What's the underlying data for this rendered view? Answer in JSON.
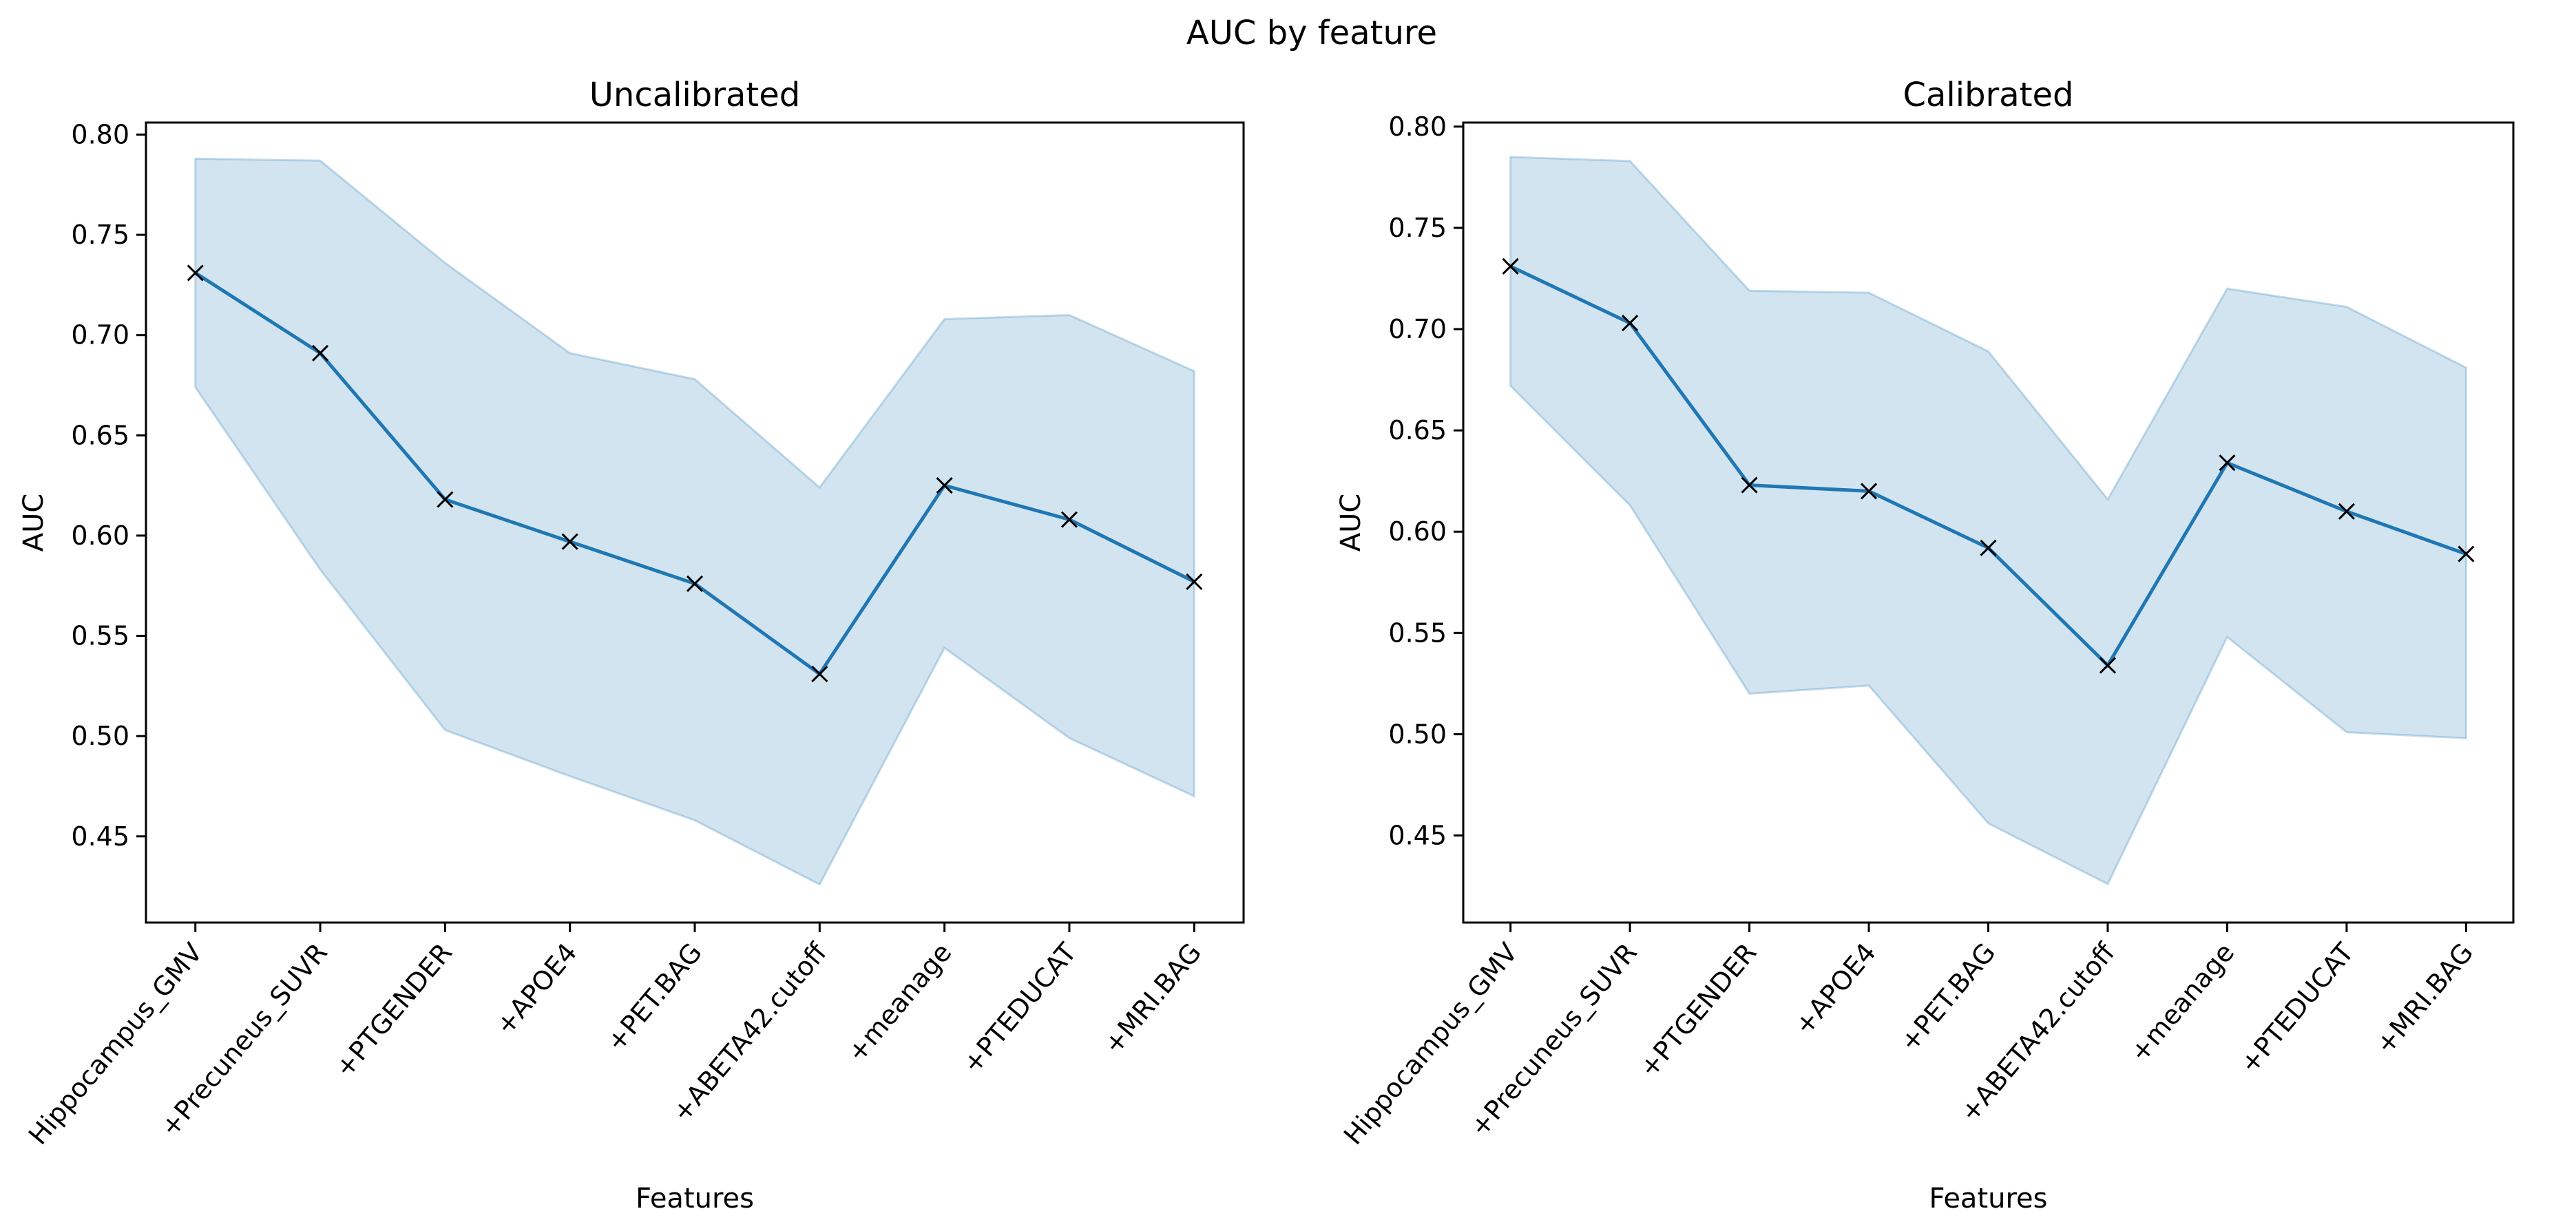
{
  "figure": {
    "suptitle": "AUC by feature"
  },
  "chart_data": [
    {
      "type": "line",
      "title": "Uncalibrated",
      "xlabel": "Features",
      "ylabel": "AUC",
      "categories": [
        "Hippocampus_GMV",
        "+Precuneus_SUVR",
        "+PTGENDER",
        "+APOE4",
        "+PET.BAG",
        "+ABETA42.cutoff",
        "+meanage",
        "+PTEDUCAT",
        "+MRI.BAG"
      ],
      "yticks": [
        "0.45",
        "0.50",
        "0.55",
        "0.60",
        "0.65",
        "0.70",
        "0.75",
        "0.80"
      ],
      "ylim": [
        0.407,
        0.806
      ],
      "values": [
        0.731,
        0.691,
        0.618,
        0.597,
        0.576,
        0.531,
        0.625,
        0.608,
        0.577
      ],
      "lower": [
        0.674,
        0.583,
        0.503,
        0.48,
        0.458,
        0.426,
        0.544,
        0.499,
        0.47
      ],
      "upper": [
        0.788,
        0.787,
        0.736,
        0.691,
        0.678,
        0.624,
        0.708,
        0.71,
        0.682
      ],
      "line_color": "#1f77b4",
      "band_color": "#1f77b4",
      "marker": "x"
    },
    {
      "type": "line",
      "title": "Calibrated",
      "xlabel": "Features",
      "ylabel": "AUC",
      "categories": [
        "Hippocampus_GMV",
        "+Precuneus_SUVR",
        "+PTGENDER",
        "+APOE4",
        "+PET.BAG",
        "+ABETA42.cutoff",
        "+meanage",
        "+PTEDUCAT",
        "+MRI.BAG"
      ],
      "yticks": [
        "0.45",
        "0.50",
        "0.55",
        "0.60",
        "0.65",
        "0.70",
        "0.75",
        "0.80"
      ],
      "ylim": [
        0.407,
        0.802
      ],
      "values": [
        0.731,
        0.703,
        0.623,
        0.62,
        0.592,
        0.534,
        0.634,
        0.61,
        0.589
      ],
      "lower": [
        0.672,
        0.613,
        0.52,
        0.524,
        0.456,
        0.426,
        0.548,
        0.501,
        0.498
      ],
      "upper": [
        0.785,
        0.783,
        0.719,
        0.718,
        0.689,
        0.616,
        0.72,
        0.711,
        0.681
      ],
      "line_color": "#1f77b4",
      "band_color": "#1f77b4",
      "marker": "x"
    }
  ]
}
